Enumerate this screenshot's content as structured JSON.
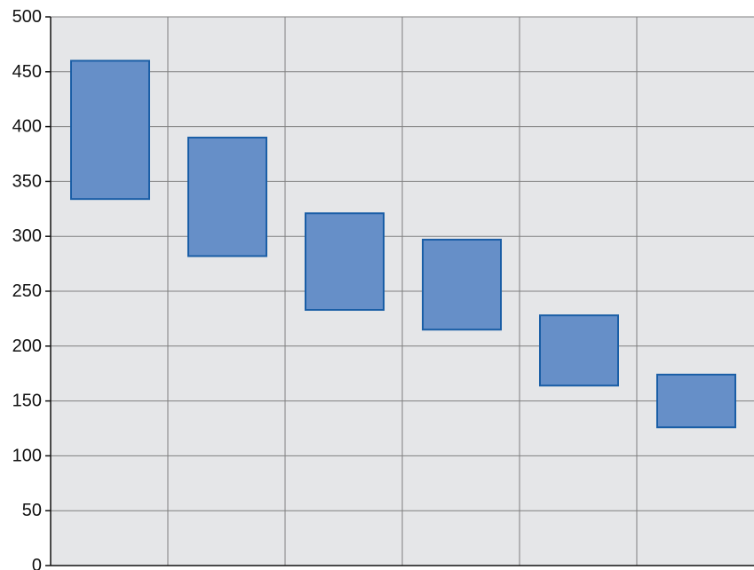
{
  "chart_data": {
    "type": "bar",
    "title": "",
    "xlabel": "",
    "ylabel": "",
    "ylim": [
      0,
      500
    ],
    "yticks": [
      0,
      50,
      100,
      150,
      200,
      250,
      300,
      350,
      400,
      450,
      500
    ],
    "grid": true,
    "categories": [
      "",
      "",
      "",
      "",
      "",
      ""
    ],
    "ranges": [
      {
        "low": 334,
        "high": 460
      },
      {
        "low": 282,
        "high": 390
      },
      {
        "low": 233,
        "high": 321
      },
      {
        "low": 215,
        "high": 297
      },
      {
        "low": 164,
        "high": 228
      },
      {
        "low": 126,
        "high": 174
      }
    ]
  },
  "colors": {
    "plot_background": "#e5e6e8",
    "grid": "#7f7f7f",
    "bar_fill": "#668fc8",
    "bar_stroke": "#1a5ea6",
    "axis": "#111111"
  }
}
